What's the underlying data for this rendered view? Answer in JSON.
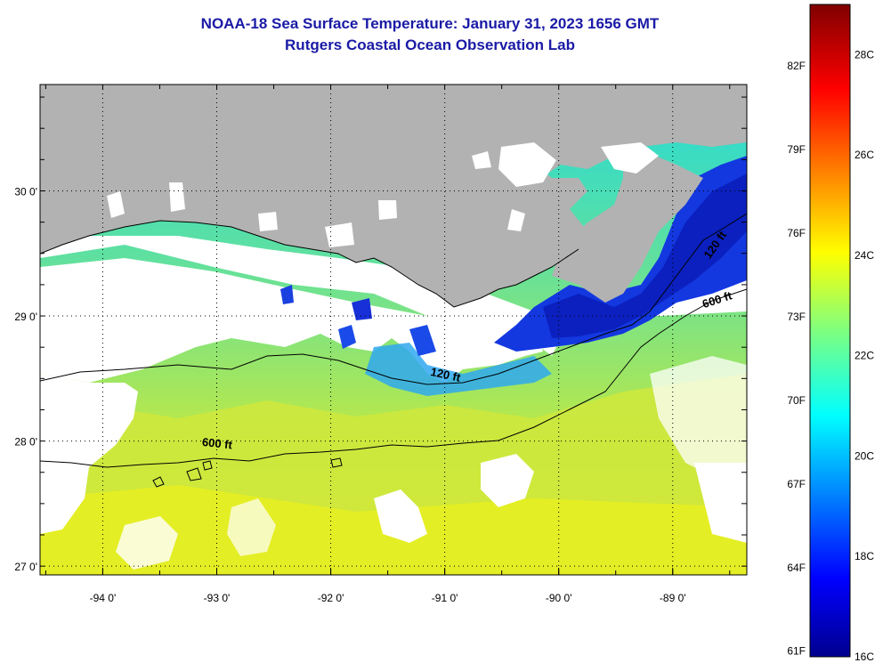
{
  "title": {
    "line1": "NOAA-18 Sea Surface Temperature:  January 31, 2023 1656 GMT",
    "line2": "Rutgers Coastal Ocean Observation Lab"
  },
  "map": {
    "lon_range": [
      -94.55,
      -88.35
    ],
    "lat_range": [
      26.93,
      30.85
    ],
    "lon_ticks": [
      {
        "value": -94,
        "label": "-94 0'"
      },
      {
        "value": -93,
        "label": "-93 0'"
      },
      {
        "value": -92,
        "label": "-92 0'"
      },
      {
        "value": -91,
        "label": "-91 0'"
      },
      {
        "value": -90,
        "label": "-90 0'"
      },
      {
        "value": -89,
        "label": "-89 0'"
      }
    ],
    "lat_ticks": [
      {
        "value": 27,
        "label": "27 0'"
      },
      {
        "value": 28,
        "label": "28 0'"
      },
      {
        "value": 29,
        "label": "29 0'"
      },
      {
        "value": 30,
        "label": "30 0'"
      }
    ],
    "contours": [
      {
        "label": "120 ft",
        "label_lon": -91.0,
        "label_lat": 28.5
      },
      {
        "label": "600 ft",
        "label_lon": -93.0,
        "label_lat": 27.95
      },
      {
        "label": "120 ft",
        "label_lon": -88.6,
        "label_lat": 29.55
      },
      {
        "label": "600 ft",
        "label_lon": -88.6,
        "label_lat": 29.1
      }
    ],
    "colors": {
      "land": "#b2b2b2",
      "cloud": "#ffffff",
      "warm": "#d8ec30",
      "cold": "#0a24d8"
    }
  },
  "colorbar": {
    "temp_range_c": [
      16,
      29
    ],
    "f_labels": [
      {
        "value": 82,
        "label": "82F"
      },
      {
        "value": 79,
        "label": "79F"
      },
      {
        "value": 76,
        "label": "76F"
      },
      {
        "value": 73,
        "label": "73F"
      },
      {
        "value": 70,
        "label": "70F"
      },
      {
        "value": 67,
        "label": "67F"
      },
      {
        "value": 64,
        "label": "64F"
      },
      {
        "value": 61,
        "label": "61F"
      }
    ],
    "c_labels": [
      {
        "value": 28,
        "label": "28C"
      },
      {
        "value": 26,
        "label": "26C"
      },
      {
        "value": 24,
        "label": "24C"
      },
      {
        "value": 22,
        "label": "22C"
      },
      {
        "value": 20,
        "label": "20C"
      },
      {
        "value": 18,
        "label": "18C"
      },
      {
        "value": 16,
        "label": "16C"
      }
    ]
  }
}
